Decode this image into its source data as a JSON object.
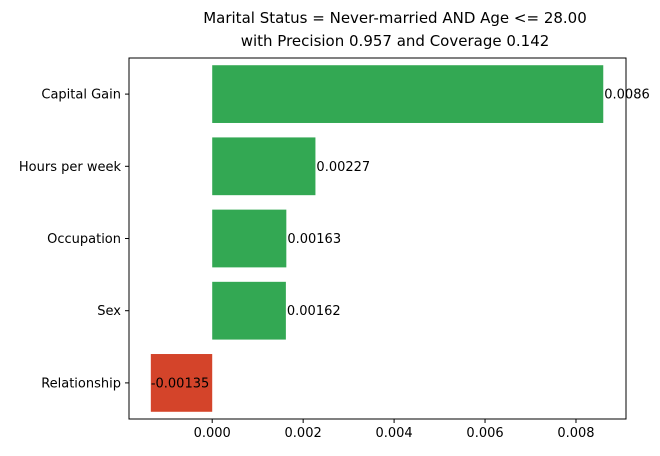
{
  "chart_data": {
    "type": "bar",
    "orientation": "horizontal",
    "title": "Marital Status = Never-married AND Age <= 28.00",
    "subtitle": "with Precision 0.957 and Coverage 0.142",
    "categories": [
      "Capital Gain",
      "Hours per week",
      "Occupation",
      "Sex",
      "Relationship"
    ],
    "values": [
      0.0086,
      0.00227,
      0.00163,
      0.00162,
      -0.00135
    ],
    "data_labels": [
      "0.0086",
      "0.00227",
      "0.00163",
      "0.00162",
      "-0.00135"
    ],
    "xlim": [
      -0.00183,
      0.0091
    ],
    "xticks": [
      0.0,
      0.002,
      0.004,
      0.006,
      0.008
    ],
    "xtick_labels": [
      "0.000",
      "0.002",
      "0.004",
      "0.006",
      "0.008"
    ],
    "xlabel": "",
    "ylabel": "",
    "grid": false,
    "colors": {
      "positive": "#33a853",
      "negative": "#d4442a"
    }
  }
}
